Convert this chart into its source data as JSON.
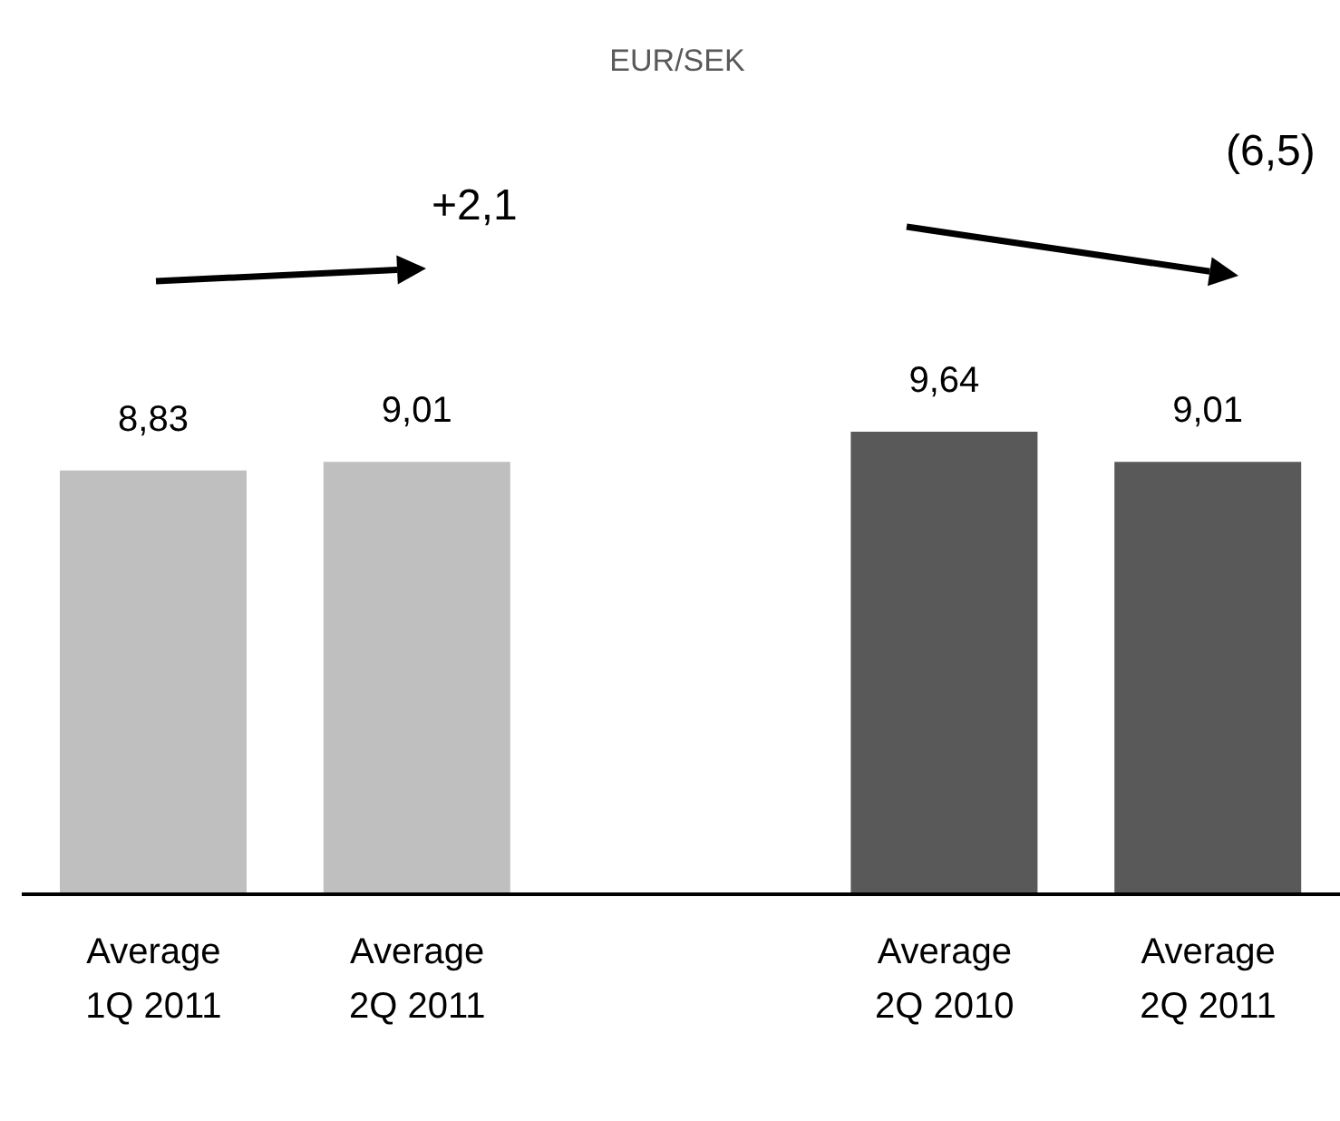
{
  "chart_data": {
    "type": "bar",
    "title": "EUR/SEK",
    "categories": [
      "Average 1Q 2011",
      "Average 2Q 2011",
      null,
      "Average 2Q 2010",
      "Average 2Q 2011"
    ],
    "values": [
      8.83,
      9.01,
      null,
      9.64,
      9.01
    ],
    "value_labels": [
      "8,83",
      "9,01",
      null,
      "9,64",
      "9,01"
    ],
    "colors": [
      "#bfbfbf",
      "#bfbfbf",
      "#bfbfbf",
      "#595959",
      "#595959"
    ],
    "annotations": [
      "+2,1",
      "(6,5)"
    ]
  }
}
